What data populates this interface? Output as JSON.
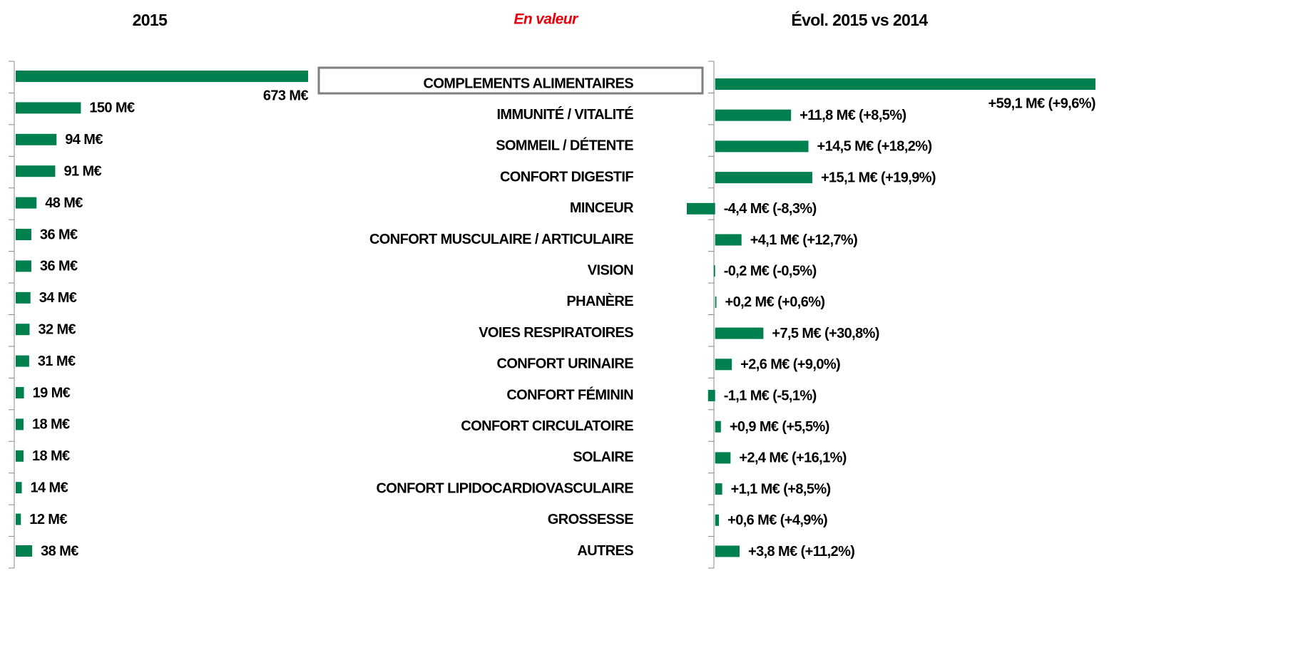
{
  "subtitle": "En valeur",
  "chart_data": [
    {
      "type": "bar",
      "title": "2015",
      "categories": [
        "COMPLEMENTS ALIMENTAIRES",
        "IMMUNITÉ / VITALITÉ",
        "SOMMEIL / DÉTENTE",
        "CONFORT DIGESTIF",
        "MINCEUR",
        "CONFORT MUSCULAIRE / ARTICULAIRE",
        "VISION",
        "PHANÈRE",
        "VOIES RESPIRATOIRES",
        "CONFORT URINAIRE",
        "CONFORT FÉMININ",
        "CONFORT CIRCULATOIRE",
        "SOLAIRE",
        "CONFORT LIPIDOCARDIOVASCULAIRE",
        "GROSSESSE",
        "AUTRES"
      ],
      "values": [
        673,
        150,
        94,
        91,
        48,
        36,
        36,
        34,
        32,
        31,
        19,
        18,
        18,
        14,
        12,
        38
      ],
      "value_labels": [
        "673 M€",
        "150 M€",
        "94 M€",
        "91 M€",
        "48 M€",
        "36 M€",
        "36 M€",
        "34 M€",
        "32 M€",
        "31 M€",
        "19 M€",
        "18 M€",
        "18 M€",
        "14 M€",
        "12 M€",
        "38 M€"
      ],
      "xlim": [
        0,
        673
      ],
      "color": "#00804f"
    },
    {
      "type": "bar",
      "title": "Évol. 2015 vs 2014",
      "values": [
        59.1,
        11.8,
        14.5,
        15.1,
        -4.4,
        4.1,
        -0.2,
        0.2,
        7.5,
        2.6,
        -1.1,
        0.9,
        2.4,
        1.1,
        0.6,
        3.8
      ],
      "value_labels": [
        "+59,1 M€  (+9,6%)",
        "+11,8 M€ (+8,5%)",
        "+14,5 M€ (+18,2%)",
        "+15,1 M€ (+19,9%)",
        "-4,4 M€ (-8,3%)",
        "+4,1 M€ (+12,7%)",
        "-0,2 M€ (-0,5%)",
        "+0,2 M€ (+0,6%)",
        "+7,5 M€ (+30,8%)",
        "+2,6 M€ (+9,0%)",
        "-1,1 M€ (-5,1%)",
        "+0,9 M€ (+5,5%)",
        "+2,4 M€  (+16,1%)",
        "+1,1 M€ (+8,5%)",
        "+0,6 M€ (+4,9%)",
        "+3,8 M€ (+11,2%)"
      ],
      "xlim": [
        -4.4,
        59.1
      ],
      "color": "#00804f",
      "positive_color": "#1fad4c",
      "negative_color": "#e8000b"
    }
  ]
}
